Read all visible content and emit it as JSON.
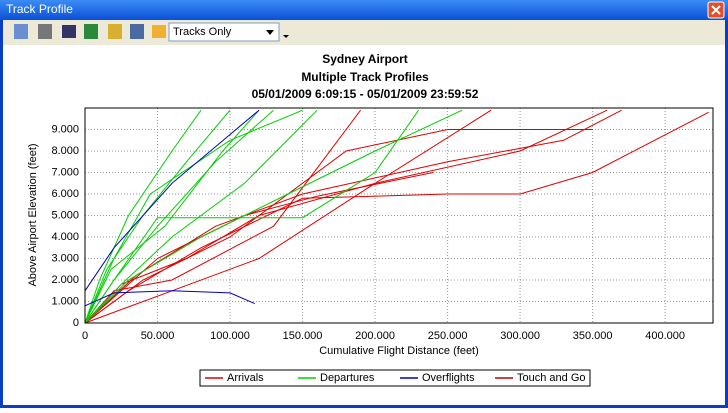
{
  "window": {
    "title": "Track Profile"
  },
  "toolbar": {
    "dropdown": "Tracks Only"
  },
  "chart_data": {
    "type": "line",
    "title": "Sydney Airport",
    "subtitle": "Multiple Track Profiles",
    "period": "05/01/2009 6:09:15 - 05/01/2009 23:59:52",
    "x_label": "Cumulative Flight Distance (feet)",
    "y_label": "Above Airport Elevation (feet)",
    "xlim": [
      0,
      433000
    ],
    "ylim": [
      0,
      10000
    ],
    "xticks": [
      0,
      {
        "value": 50000,
        "label": "50.000"
      },
      {
        "value": 100000,
        "label": "100.000"
      },
      {
        "value": 150000,
        "label": "150.000"
      },
      {
        "value": 200000,
        "label": "200.000"
      },
      {
        "value": 250000,
        "label": "250.000"
      },
      {
        "value": 300000,
        "label": "300.000"
      },
      {
        "value": 350000,
        "label": "350.000"
      },
      {
        "value": 400000,
        "label": "400.000"
      }
    ],
    "yticks": [
      0,
      {
        "value": 1000,
        "label": "1.000"
      },
      {
        "value": 2000,
        "label": "2.000"
      },
      {
        "value": 3000,
        "label": "3.000"
      },
      {
        "value": 4000,
        "label": "4.000"
      },
      {
        "value": 5000,
        "label": "5.000"
      },
      {
        "value": 6000,
        "label": "6.000"
      },
      {
        "value": 7000,
        "label": "7.000"
      },
      {
        "value": 8000,
        "label": "8.000"
      },
      {
        "value": 9000,
        "label": "9.000"
      }
    ],
    "grid": true,
    "legend": "bottom",
    "series": [
      {
        "name": "Arrivals",
        "color": "#e00000",
        "tracks": [
          {
            "x": [
              0,
              30000,
              80000,
              150000,
              250000,
              300000,
              350000,
              430000
            ],
            "values": [
              0,
              1500,
              3500,
              5800,
              6000,
              6000,
              7000,
              9800
            ]
          },
          {
            "x": [
              0,
              25000,
              70000,
              120000,
              200000,
              300000,
              360000
            ],
            "values": [
              0,
              1800,
              3000,
              5000,
              6500,
              8000,
              9900
            ]
          },
          {
            "x": [
              0,
              40000,
              100000,
              180000,
              250000,
              350000
            ],
            "values": [
              0,
              2000,
              4000,
              8000,
              9000,
              9000
            ]
          },
          {
            "x": [
              0,
              60000,
              120000,
              200000,
              280000
            ],
            "values": [
              0,
              1500,
              3000,
              6500,
              9900
            ]
          },
          {
            "x": [
              0,
              50000,
              110000,
              160000,
              240000
            ],
            "values": [
              0,
              3000,
              5000,
              5900,
              7000
            ]
          },
          {
            "x": [
              0,
              35000,
              90000,
              150000,
              250000,
              330000,
              370000
            ],
            "values": [
              0,
              2200,
              4500,
              6000,
              7500,
              8500,
              9900
            ]
          },
          {
            "x": [
              0,
              20000,
              60000,
              130000,
              190000
            ],
            "values": [
              0,
              1500,
              2000,
              4500,
              9900
            ]
          }
        ]
      },
      {
        "name": "Departures",
        "color": "#00d000",
        "tracks": [
          {
            "x": [
              0,
              20000,
              50000,
              90000,
              130000
            ],
            "values": [
              0,
              2000,
              4500,
              7500,
              9900
            ]
          },
          {
            "x": [
              0,
              15000,
              40000,
              70000,
              100000
            ],
            "values": [
              0,
              2500,
              5000,
              7500,
              9900
            ]
          },
          {
            "x": [
              0,
              25000,
              60000,
              110000,
              160000
            ],
            "values": [
              0,
              1800,
              4000,
              6500,
              9900
            ]
          },
          {
            "x": [
              0,
              20000,
              50000,
              150000,
              200000,
              230000
            ],
            "values": [
              0,
              2000,
              4900,
              4900,
              7000,
              9900
            ]
          },
          {
            "x": [
              0,
              10000,
              30000,
              60000,
              80000
            ],
            "values": [
              0,
              2000,
              5000,
              8000,
              9900
            ]
          },
          {
            "x": [
              0,
              30000,
              80000,
              140000,
              200000,
              260000
            ],
            "values": [
              0,
              2000,
              4000,
              6000,
              8000,
              9900
            ]
          },
          {
            "x": [
              0,
              20000,
              45000,
              100000,
              150000
            ],
            "values": [
              0,
              3000,
              6000,
              8500,
              9900
            ]
          },
          {
            "x": [
              0,
              18000,
              55000,
              95000,
              120000
            ],
            "values": [
              0,
              2500,
              4500,
              8000,
              9900
            ]
          }
        ]
      },
      {
        "name": "Overflights",
        "color": "#0000c0",
        "tracks": [
          {
            "x": [
              0,
              20000,
              60000,
              100000,
              117000
            ],
            "values": [
              800,
              1400,
              1500,
              1400,
              900
            ]
          },
          {
            "x": [
              0,
              20000,
              60000,
              120000
            ],
            "values": [
              1500,
              3500,
              6500,
              9900
            ]
          }
        ]
      },
      {
        "name": "Touch and Go",
        "color": "#c00000",
        "tracks": []
      }
    ]
  }
}
